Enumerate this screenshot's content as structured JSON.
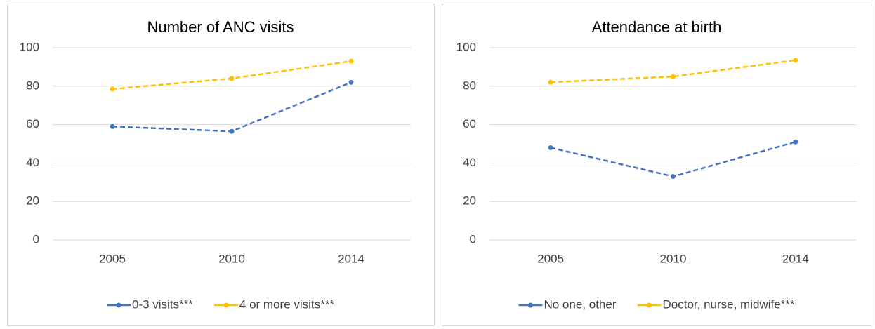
{
  "chart_data": [
    {
      "type": "line",
      "title": "Number of ANC visits",
      "categories": [
        "2005",
        "2010",
        "2014"
      ],
      "series": [
        {
          "name": "0-3 visits***",
          "color": "#4472c4",
          "values": [
            59,
            56.5,
            82
          ]
        },
        {
          "name": "4 or more visits***",
          "color": "#ffc000",
          "values": [
            78.5,
            84,
            93
          ]
        }
      ],
      "ylim": [
        0,
        100
      ],
      "yticks": [
        0,
        20,
        40,
        60,
        80,
        100
      ],
      "grid": true,
      "line_style": "dashed",
      "legend": "bottom"
    },
    {
      "type": "line",
      "title": "Attendance at birth",
      "categories": [
        "2005",
        "2010",
        "2014"
      ],
      "series": [
        {
          "name": "No one, other",
          "color": "#4472c4",
          "values": [
            48,
            33,
            51
          ]
        },
        {
          "name": "Doctor, nurse, midwife***",
          "color": "#ffc000",
          "values": [
            82,
            85,
            93.5
          ]
        }
      ],
      "ylim": [
        0,
        100
      ],
      "yticks": [
        0,
        20,
        40,
        60,
        80,
        100
      ],
      "grid": true,
      "line_style": "dashed",
      "legend": "bottom"
    }
  ]
}
